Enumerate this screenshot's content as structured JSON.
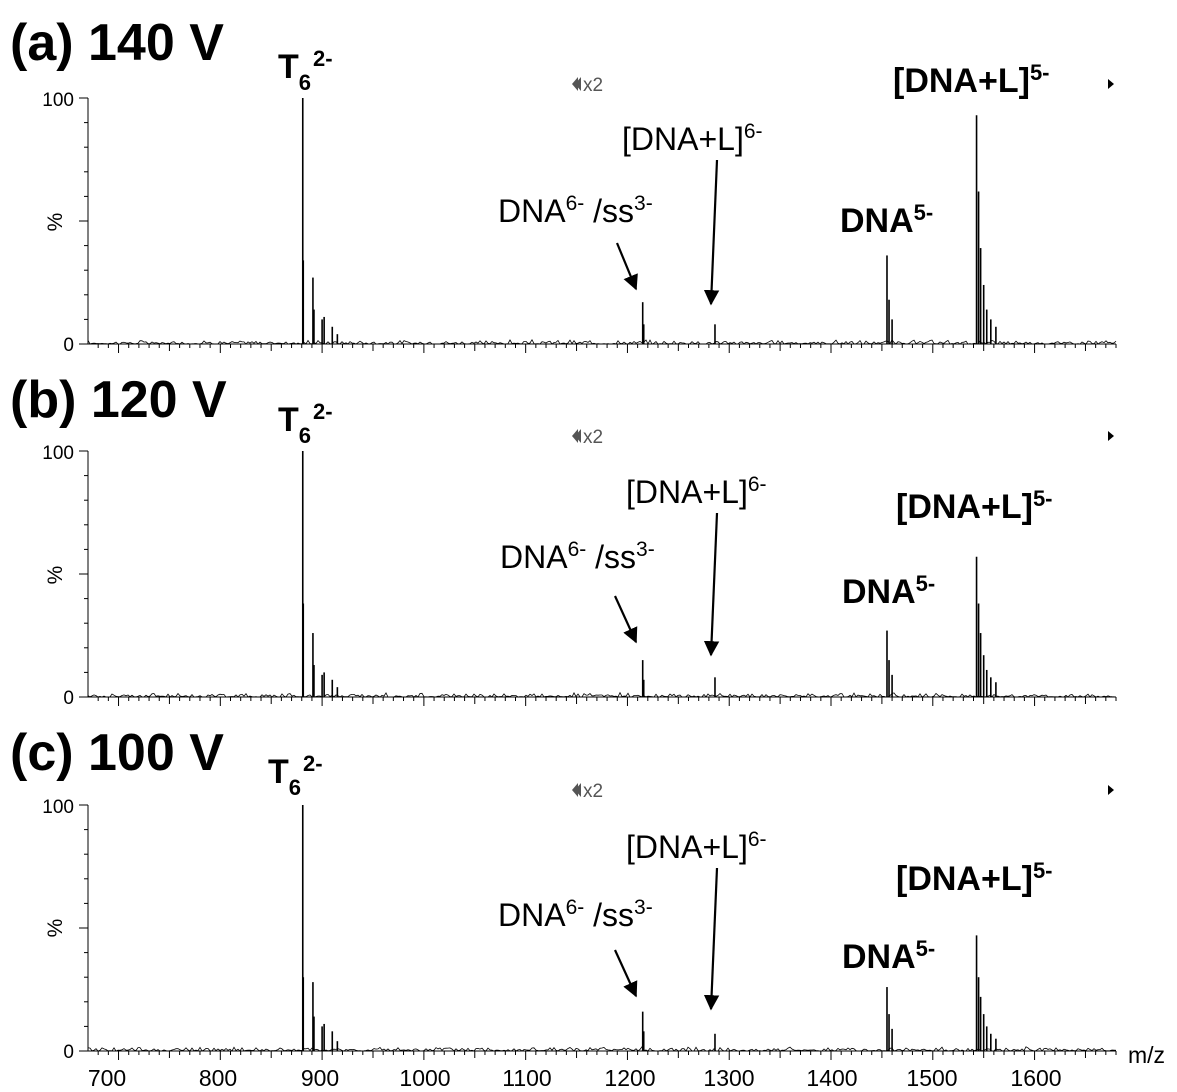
{
  "chart_data": [
    {
      "type": "line",
      "panel_label": "(a) 140 V",
      "ylabel": "%",
      "xlabel": "m/z",
      "xlim": [
        670,
        1680
      ],
      "ylim": [
        0,
        100
      ],
      "y_ticks": [
        "0",
        "100"
      ],
      "zoom_marker": "x2",
      "peaks": [
        {
          "mz": 881,
          "intensity": 100
        },
        {
          "mz": 881.5,
          "intensity": 34
        },
        {
          "mz": 891,
          "intensity": 27
        },
        {
          "mz": 892,
          "intensity": 14
        },
        {
          "mz": 900,
          "intensity": 10
        },
        {
          "mz": 902,
          "intensity": 11
        },
        {
          "mz": 910,
          "intensity": 7
        },
        {
          "mz": 915,
          "intensity": 4
        },
        {
          "mz": 1215,
          "intensity": 17
        },
        {
          "mz": 1216,
          "intensity": 8
        },
        {
          "mz": 1286,
          "intensity": 8
        },
        {
          "mz": 1455,
          "intensity": 36
        },
        {
          "mz": 1457,
          "intensity": 18
        },
        {
          "mz": 1460,
          "intensity": 10
        },
        {
          "mz": 1543,
          "intensity": 93
        },
        {
          "mz": 1545,
          "intensity": 62
        },
        {
          "mz": 1547,
          "intensity": 39
        },
        {
          "mz": 1550,
          "intensity": 24
        },
        {
          "mz": 1553,
          "intensity": 14
        },
        {
          "mz": 1557,
          "intensity": 10
        },
        {
          "mz": 1562,
          "intensity": 7
        }
      ],
      "annotations": {
        "t6": {
          "base": "T",
          "sub": "6",
          "sup": "2-"
        },
        "dna_ss": {
          "base": "DNA",
          "sup1": "6-",
          "mid": " /ss",
          "sup2": "3-"
        },
        "dnal6": {
          "base": "[DNA+L]",
          "sup": "6-"
        },
        "dna5": {
          "base": "DNA",
          "sup": "5-"
        },
        "dnal5": {
          "base": "[DNA+L]",
          "sup": "5-"
        }
      }
    },
    {
      "type": "line",
      "panel_label": "(b) 120 V",
      "ylabel": "%",
      "xlabel": "m/z",
      "xlim": [
        670,
        1680
      ],
      "ylim": [
        0,
        100
      ],
      "y_ticks": [
        "0",
        "100"
      ],
      "zoom_marker": "x2",
      "peaks": [
        {
          "mz": 881,
          "intensity": 100
        },
        {
          "mz": 881.5,
          "intensity": 38
        },
        {
          "mz": 891,
          "intensity": 26
        },
        {
          "mz": 892,
          "intensity": 13
        },
        {
          "mz": 900,
          "intensity": 9
        },
        {
          "mz": 902,
          "intensity": 10
        },
        {
          "mz": 910,
          "intensity": 7
        },
        {
          "mz": 915,
          "intensity": 4
        },
        {
          "mz": 1215,
          "intensity": 15
        },
        {
          "mz": 1216,
          "intensity": 7
        },
        {
          "mz": 1286,
          "intensity": 8
        },
        {
          "mz": 1455,
          "intensity": 27
        },
        {
          "mz": 1457,
          "intensity": 15
        },
        {
          "mz": 1460,
          "intensity": 9
        },
        {
          "mz": 1543,
          "intensity": 57
        },
        {
          "mz": 1545,
          "intensity": 38
        },
        {
          "mz": 1547,
          "intensity": 26
        },
        {
          "mz": 1550,
          "intensity": 17
        },
        {
          "mz": 1553,
          "intensity": 11
        },
        {
          "mz": 1557,
          "intensity": 8
        },
        {
          "mz": 1562,
          "intensity": 6
        }
      ],
      "annotations": {
        "t6": {
          "base": "T",
          "sub": "6",
          "sup": "2-"
        },
        "dna_ss": {
          "base": "DNA",
          "sup1": "6-",
          "mid": " /ss",
          "sup2": "3-"
        },
        "dnal6": {
          "base": "[DNA+L]",
          "sup": "6-"
        },
        "dna5": {
          "base": "DNA",
          "sup": "5-"
        },
        "dnal5": {
          "base": "[DNA+L]",
          "sup": "5-"
        }
      }
    },
    {
      "type": "line",
      "panel_label": "(c) 100 V",
      "ylabel": "%",
      "xlabel": "m/z",
      "xlim": [
        670,
        1680
      ],
      "ylim": [
        0,
        100
      ],
      "y_ticks": [
        "0",
        "100"
      ],
      "x_ticks": [
        "700",
        "800",
        "900",
        "1000",
        "1100",
        "1200",
        "1300",
        "1400",
        "1500",
        "1600"
      ],
      "zoom_marker": "x2",
      "peaks": [
        {
          "mz": 881,
          "intensity": 100
        },
        {
          "mz": 881.5,
          "intensity": 30
        },
        {
          "mz": 891,
          "intensity": 28
        },
        {
          "mz": 892,
          "intensity": 14
        },
        {
          "mz": 900,
          "intensity": 10
        },
        {
          "mz": 902,
          "intensity": 11
        },
        {
          "mz": 910,
          "intensity": 8
        },
        {
          "mz": 915,
          "intensity": 4
        },
        {
          "mz": 1215,
          "intensity": 16
        },
        {
          "mz": 1216,
          "intensity": 8
        },
        {
          "mz": 1286,
          "intensity": 7
        },
        {
          "mz": 1455,
          "intensity": 26
        },
        {
          "mz": 1457,
          "intensity": 15
        },
        {
          "mz": 1460,
          "intensity": 9
        },
        {
          "mz": 1543,
          "intensity": 47
        },
        {
          "mz": 1545,
          "intensity": 30
        },
        {
          "mz": 1547,
          "intensity": 22
        },
        {
          "mz": 1550,
          "intensity": 15
        },
        {
          "mz": 1553,
          "intensity": 10
        },
        {
          "mz": 1557,
          "intensity": 7
        },
        {
          "mz": 1562,
          "intensity": 5
        }
      ],
      "annotations": {
        "t6": {
          "base": "T",
          "sub": "6",
          "sup": "2-"
        },
        "dna_ss": {
          "base": "DNA",
          "sup1": "6-",
          "mid": " /ss",
          "sup2": "3-"
        },
        "dnal6": {
          "base": "[DNA+L]",
          "sup": "6-"
        },
        "dna5": {
          "base": "DNA",
          "sup": "5-"
        },
        "dnal5": {
          "base": "[DNA+L]",
          "sup": "5-"
        }
      }
    }
  ]
}
